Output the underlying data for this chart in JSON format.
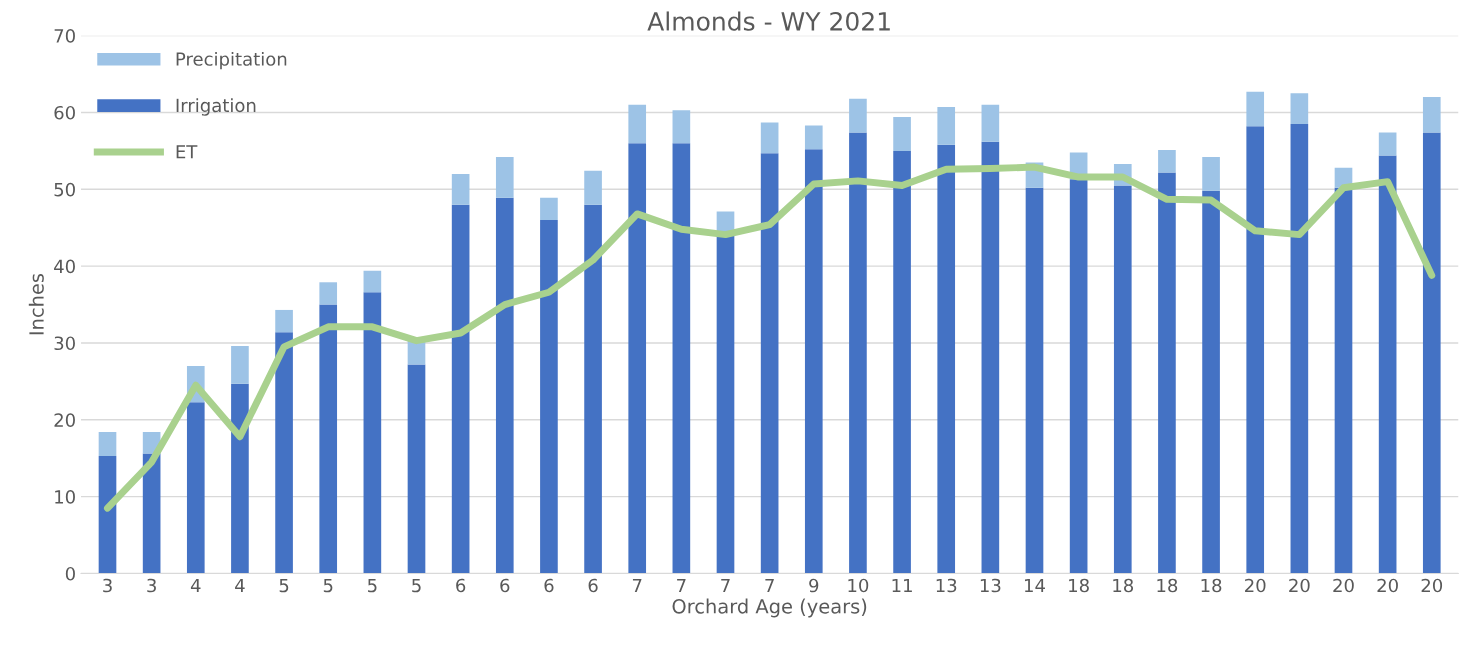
{
  "chart_data": {
    "type": "bar",
    "title": "Almonds - WY 2021",
    "xlabel": "Orchard Age (years)",
    "ylabel": "Inches",
    "categories": [
      "3",
      "3",
      "4",
      "4",
      "5",
      "5",
      "5",
      "5",
      "6",
      "6",
      "6",
      "6",
      "7",
      "7",
      "7",
      "7",
      "9",
      "10",
      "11",
      "13",
      "13",
      "14",
      "18",
      "18",
      "18",
      "18",
      "20",
      "20",
      "20",
      "20",
      "20"
    ],
    "stacked": true,
    "series": [
      {
        "name": "Irrigation",
        "color": "#4472c4",
        "values": [
          15.3,
          15.6,
          22.3,
          24.7,
          31.4,
          35.0,
          36.6,
          27.2,
          48.0,
          48.9,
          46.0,
          48.0,
          56.0,
          56.0,
          44.2,
          54.7,
          55.2,
          57.4,
          55.0,
          55.8,
          56.2,
          50.2,
          51.3,
          50.5,
          52.2,
          49.8,
          58.2,
          58.5,
          50.2,
          54.4,
          57.4
        ]
      },
      {
        "name": "Precipitation",
        "color": "#9dc3e6",
        "values": [
          3.1,
          2.8,
          4.7,
          4.9,
          2.9,
          2.9,
          2.8,
          3.1,
          4.0,
          5.3,
          2.9,
          4.4,
          5.0,
          4.3,
          2.9,
          4.0,
          3.1,
          4.4,
          4.4,
          4.9,
          4.8,
          3.3,
          3.5,
          2.8,
          2.9,
          4.4,
          4.5,
          4.0,
          2.6,
          3.0,
          4.6
        ]
      },
      {
        "name": "ET",
        "type": "line",
        "color": "#a9d18e",
        "values": [
          8.5,
          14.5,
          24.5,
          17.8,
          29.5,
          32.1,
          32.1,
          30.3,
          31.3,
          35.0,
          36.6,
          40.8,
          46.8,
          44.8,
          44.1,
          45.4,
          50.7,
          51.1,
          50.5,
          52.6,
          52.7,
          52.9,
          51.6,
          51.6,
          48.7,
          48.6,
          44.6,
          44.1,
          50.2,
          51.0,
          38.8
        ]
      }
    ],
    "ylim": [
      0,
      70
    ],
    "yticks": [
      0,
      10,
      20,
      30,
      40,
      50,
      60,
      70
    ],
    "grid": "y",
    "legend": "top left"
  }
}
